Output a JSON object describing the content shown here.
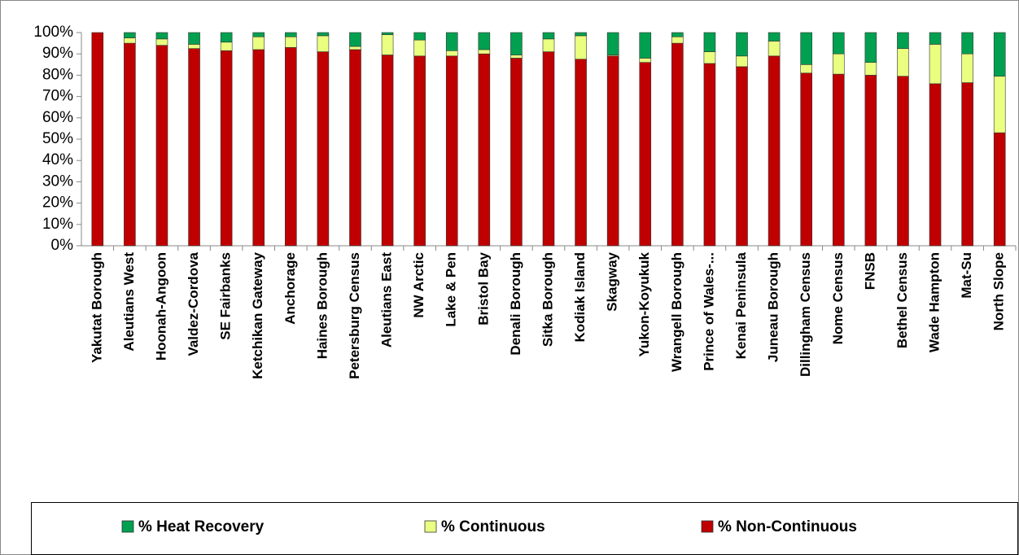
{
  "chart_data": {
    "type": "stacked_bar",
    "categories": [
      "Yakutat Borough",
      "Aleutians West",
      "Hoonah-Angoon",
      "Valdez-Cordova",
      "SE Fairbanks",
      "Ketchikan Gateway",
      "Anchorage",
      "Haines Borough",
      "Petersburg Census",
      "Aleutians East",
      "NW Arctic",
      "Lake & Pen",
      "Bristol Bay",
      "Denali Borough",
      "Sitka Borough",
      "Kodiak Island",
      "Skagway",
      "Yukon-Koyukuk",
      "Wrangell Borough",
      "Prince of Wales-...",
      "Kenai Peninsula",
      "Juneau Borough",
      "Dillingham Census",
      "Nome Census",
      "FNSB",
      "Bethel Census",
      "Wade Hampton",
      "Mat-Su",
      "North Slope"
    ],
    "series": [
      {
        "name": "% Heat Recovery",
        "color": "#00a050",
        "values": [
          0,
          2.5,
          3,
          5.5,
          4.5,
          2,
          2,
          1.5,
          6.5,
          1,
          3.5,
          8.5,
          8,
          10.5,
          3,
          1.5,
          10.5,
          12,
          2,
          9,
          11,
          4,
          15,
          10,
          14,
          7.5,
          5.5,
          10,
          20.5
        ]
      },
      {
        "name": "% Continuous",
        "color": "#eaff80",
        "values": [
          0,
          2.5,
          3,
          2,
          4,
          6,
          5,
          7.5,
          1.5,
          9.5,
          7.5,
          2.5,
          2,
          1.5,
          6,
          11,
          0.5,
          2,
          3,
          5.5,
          5,
          7,
          4,
          9.5,
          6,
          13,
          18.5,
          13.5,
          26.5
        ]
      },
      {
        "name": "% Non-Continuous",
        "color": "#c00000",
        "values": [
          100,
          95,
          94,
          92.5,
          91.5,
          92,
          93,
          91,
          92,
          89.5,
          89,
          89,
          90,
          88,
          91,
          87.5,
          89,
          86,
          95,
          85.5,
          84,
          89,
          81,
          80.5,
          80,
          79.5,
          76,
          76.5,
          53
        ]
      }
    ],
    "ylim": [
      0,
      100
    ],
    "yticks": [
      {
        "value": 0,
        "label": "0%"
      },
      {
        "value": 10,
        "label": "10%"
      },
      {
        "value": 20,
        "label": "20%"
      },
      {
        "value": 30,
        "label": "30%"
      },
      {
        "value": 40,
        "label": "40%"
      },
      {
        "value": 50,
        "label": "50%"
      },
      {
        "value": 60,
        "label": "60%"
      },
      {
        "value": 70,
        "label": "70%"
      },
      {
        "value": 80,
        "label": "80%"
      },
      {
        "value": 90,
        "label": "90%"
      },
      {
        "value": 100,
        "label": "100%"
      }
    ],
    "legend": "bottom"
  }
}
